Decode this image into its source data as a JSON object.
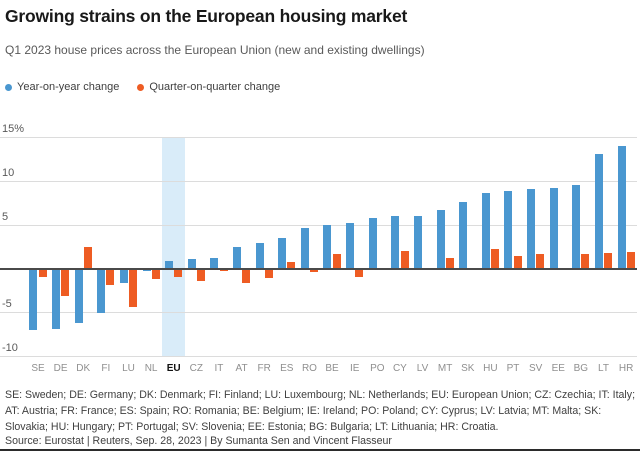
{
  "header": {
    "title": "Growing strains on the European housing market",
    "subtitle": "Q1 2023 house prices across the European Union (new and existing dwellings)"
  },
  "legend": [
    {
      "label": "Year-on-year change",
      "color": "#4a97d0"
    },
    {
      "label": "Quarter-on-quarter change",
      "color": "#ee5c23"
    }
  ],
  "chart_data": {
    "type": "bar",
    "title": "Growing strains on the European housing market",
    "subtitle": "Q1 2023 house prices across the European Union (new and existing dwellings)",
    "categories": [
      "SE",
      "DE",
      "DK",
      "FI",
      "LU",
      "NL",
      "EU",
      "CZ",
      "IT",
      "AT",
      "FR",
      "ES",
      "RO",
      "BE",
      "IE",
      "PO",
      "CY",
      "LV",
      "MT",
      "SK",
      "HU",
      "PT",
      "SV",
      "EE",
      "BG",
      "LT",
      "HR"
    ],
    "series": [
      {
        "name": "Year-on-year change",
        "color": "#4a97d0",
        "values": [
          -6.9,
          -6.8,
          -6.1,
          -5.0,
          -1.5,
          -0.1,
          0.9,
          1.1,
          1.2,
          2.5,
          2.9,
          3.5,
          4.6,
          4.9,
          5.2,
          5.8,
          6.0,
          6.0,
          6.7,
          7.6,
          8.6,
          8.8,
          9.0,
          9.2,
          9.5,
          13.0,
          14.0
        ]
      },
      {
        "name": "Quarter-on-quarter change",
        "color": "#ee5c23",
        "values": [
          -0.8,
          -3.0,
          2.5,
          -1.8,
          -4.3,
          -1.1,
          -0.9,
          -1.3,
          -0.2,
          -1.5,
          -1.0,
          0.7,
          -0.3,
          1.6,
          -0.8,
          0,
          2.0,
          0,
          1.2,
          0,
          2.2,
          1.4,
          1.6,
          0,
          1.6,
          1.8,
          1.9
        ]
      }
    ],
    "yticks": [
      {
        "value": 15,
        "label": "15%"
      },
      {
        "value": 10,
        "label": "10"
      },
      {
        "value": 5,
        "label": "5"
      },
      {
        "value": -5,
        "label": "-5"
      },
      {
        "value": -10,
        "label": "-10"
      }
    ],
    "ylim": [
      -10,
      15
    ],
    "grid": true,
    "legend_position": "top-left",
    "highlight_category": "EU",
    "highlight_band_color": "#d9ecf9",
    "zero_line_color": "#4a4a4a"
  },
  "footnote": "SE: Sweden; DE: Germany; DK: Denmark; FI: Finland; LU: Luxembourg; NL: Netherlands; EU: European Union; CZ: Czechia; IT: Italy; AT: Austria; FR: France; ES: Spain; RO: Romania; BE: Belgium; IE: Ireland; PO: Poland; CY: Cyprus; LV: Latvia; MT: Malta; SK: Slovakia; HU: Hungary; PT: Portugal; SV: Slovenia; EE: Estonia; BG: Bulgaria; LT: Lithuania; HR: Croatia.",
  "source": "Source: Eurostat | Reuters, Sep. 28, 2023 | By Sumanta Sen and Vincent Flasseur"
}
